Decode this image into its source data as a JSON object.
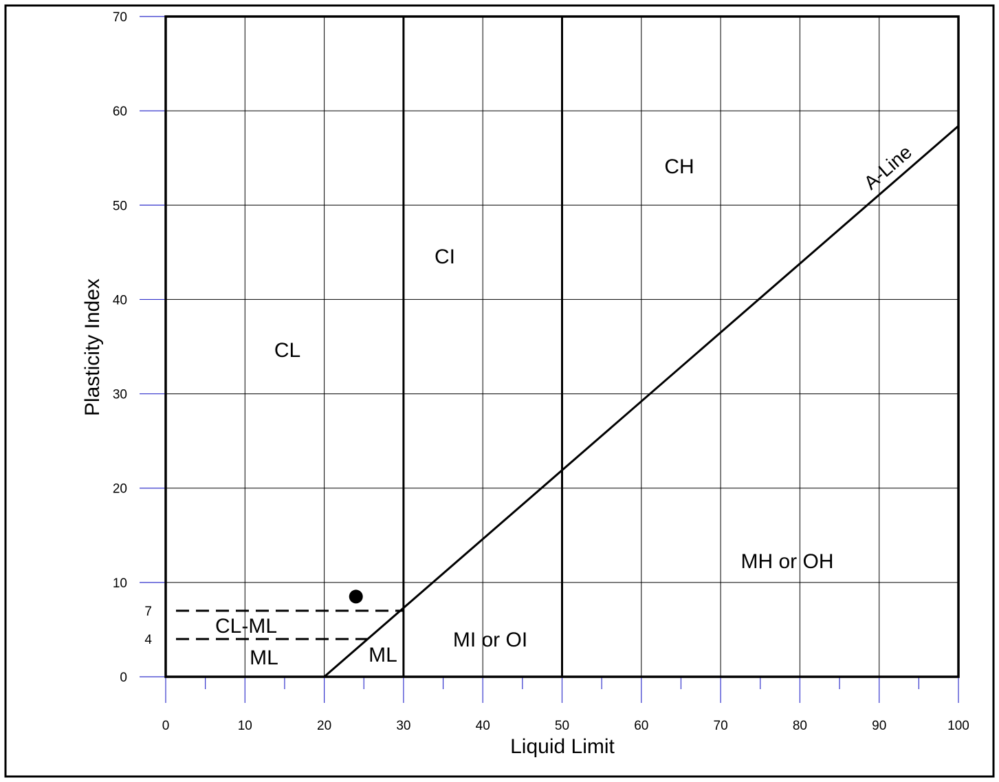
{
  "chart_data": {
    "type": "scatter",
    "xlabel": "Liquid Limit",
    "ylabel": "Plasticity Index",
    "xlim": [
      0,
      100
    ],
    "ylim": [
      0,
      70
    ],
    "xticks": [
      0,
      10,
      20,
      30,
      40,
      50,
      60,
      70,
      80,
      90,
      100
    ],
    "yticks": [
      0,
      10,
      20,
      30,
      40,
      50,
      60,
      70
    ],
    "extra_yticks": [
      7,
      4
    ],
    "grid": true,
    "points": [
      {
        "x": 24,
        "y": 8.5
      }
    ],
    "a_line": {
      "label": "A-Line",
      "x": [
        20,
        100
      ],
      "y": [
        0,
        58.4
      ]
    },
    "boundaries_ll": [
      30,
      50
    ],
    "dashed_limits": [
      {
        "y": 7,
        "x": [
          1.3,
          30
        ]
      },
      {
        "y": 4,
        "x": [
          1.3,
          25.5
        ]
      }
    ],
    "regions": [
      "CL",
      "CI",
      "CH",
      "MH or OH",
      "MI or OI",
      "CL-ML",
      "ML",
      "ML"
    ],
    "colors": {
      "lines": "#000000",
      "ticks": "#3333cc",
      "marker": "#000000"
    }
  }
}
